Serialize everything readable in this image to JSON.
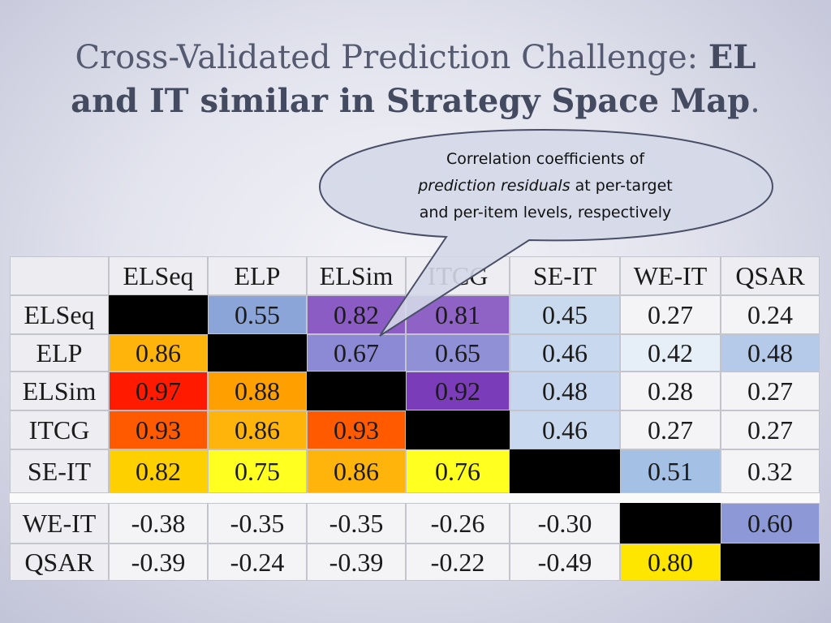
{
  "slide": {
    "title_regular": "Cross-Validated Prediction Challenge: ",
    "title_bold_1": "EL",
    "title_bold_2": "and IT similar in Strategy Space Map",
    "title_period": "."
  },
  "callout": {
    "line1": "Correlation coefficients of",
    "line2_italic": "prediction residuals",
    "line2_rest": " at per-target",
    "line3": "and per-item levels, respectively"
  },
  "table": {
    "columns": [
      "ELSeq",
      "ELP",
      "ELSim",
      "ITCG",
      "SE-IT",
      "WE-IT",
      "QSAR"
    ],
    "rows": [
      {
        "label": "ELSeq",
        "cells": [
          {
            "v": "",
            "bg": "#000000"
          },
          {
            "v": "0.55",
            "bg": "#8ca5d8"
          },
          {
            "v": "0.82",
            "bg": "#8b5cc4"
          },
          {
            "v": "0.81",
            "bg": "#8f62c6"
          },
          {
            "v": "0.45",
            "bg": "#cadaee"
          },
          {
            "v": "0.27",
            "bg": "#f4f4f6"
          },
          {
            "v": "0.24",
            "bg": "#f4f4f6"
          }
        ]
      },
      {
        "label": "ELP",
        "cells": [
          {
            "v": "0.86",
            "bg": "#ffb40c"
          },
          {
            "v": "",
            "bg": "#000000"
          },
          {
            "v": "0.67",
            "bg": "#8c8ad4"
          },
          {
            "v": "0.65",
            "bg": "#9090d6"
          },
          {
            "v": "0.46",
            "bg": "#c8d8ee"
          },
          {
            "v": "0.42",
            "bg": "#e6eef8"
          },
          {
            "v": "0.48",
            "bg": "#b4cae8"
          }
        ]
      },
      {
        "label": "ELSim",
        "cells": [
          {
            "v": "0.97",
            "bg": "#ff1a00"
          },
          {
            "v": "0.88",
            "bg": "#ffa000"
          },
          {
            "v": "",
            "bg": "#000000"
          },
          {
            "v": "0.92",
            "bg": "#7a3cb8"
          },
          {
            "v": "0.48",
            "bg": "#c6d6ee"
          },
          {
            "v": "0.28",
            "bg": "#f4f4f6"
          },
          {
            "v": "0.27",
            "bg": "#f4f4f6"
          }
        ]
      },
      {
        "label": "ITCG",
        "cells": [
          {
            "v": "0.93",
            "bg": "#ff5a00"
          },
          {
            "v": "0.86",
            "bg": "#ffb40c"
          },
          {
            "v": "0.93",
            "bg": "#ff5a00"
          },
          {
            "v": "",
            "bg": "#000000"
          },
          {
            "v": "0.46",
            "bg": "#c8d8ee"
          },
          {
            "v": "0.27",
            "bg": "#f4f4f6"
          },
          {
            "v": "0.27",
            "bg": "#f4f4f6"
          }
        ]
      },
      {
        "label": "SE-IT",
        "cells": [
          {
            "v": "0.82",
            "bg": "#ffd000"
          },
          {
            "v": "0.75",
            "bg": "#ffff20"
          },
          {
            "v": "0.86",
            "bg": "#ffb40c"
          },
          {
            "v": "0.76",
            "bg": "#ffff20"
          },
          {
            "v": "",
            "bg": "#000000"
          },
          {
            "v": "0.51",
            "bg": "#a4c0e4"
          },
          {
            "v": "0.32",
            "bg": "#f4f4f6"
          }
        ]
      },
      {
        "label": "WE-IT",
        "cells": [
          {
            "v": "-0.38",
            "bg": "#f4f4f6"
          },
          {
            "v": "-0.35",
            "bg": "#f4f4f6"
          },
          {
            "v": "-0.35",
            "bg": "#f4f4f6"
          },
          {
            "v": "-0.26",
            "bg": "#f4f4f6"
          },
          {
            "v": "-0.30",
            "bg": "#f4f4f6"
          },
          {
            "v": "",
            "bg": "#000000"
          },
          {
            "v": "0.60",
            "bg": "#8d98d6"
          }
        ]
      },
      {
        "label": "QSAR",
        "cells": [
          {
            "v": "-0.39",
            "bg": "#f4f4f6"
          },
          {
            "v": "-0.24",
            "bg": "#f4f4f6"
          },
          {
            "v": "-0.39",
            "bg": "#f4f4f6"
          },
          {
            "v": "-0.22",
            "bg": "#f4f4f6"
          },
          {
            "v": "-0.49",
            "bg": "#f4f4f6"
          },
          {
            "v": "0.80",
            "bg": "#ffe600"
          },
          {
            "v": "",
            "bg": "#000000"
          }
        ]
      }
    ]
  }
}
